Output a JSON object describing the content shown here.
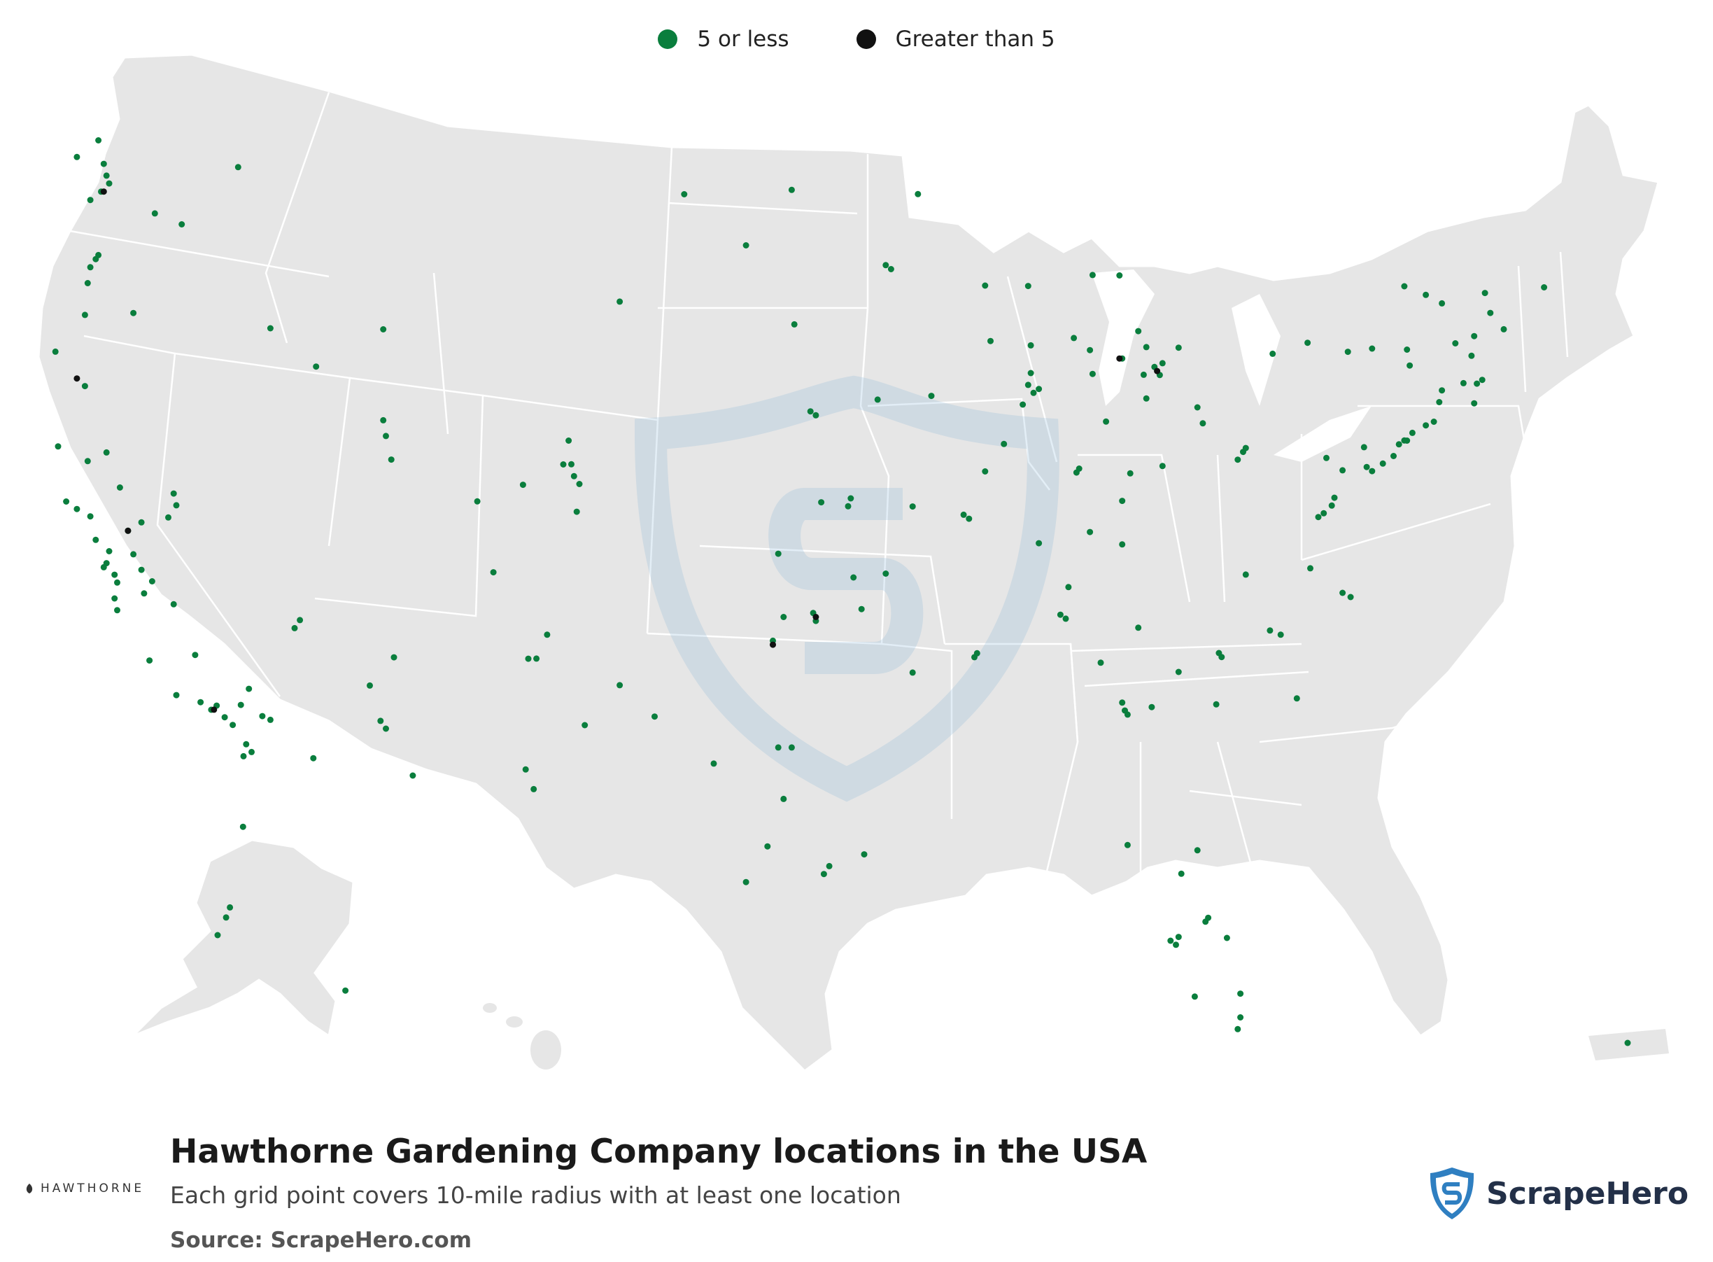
{
  "title": "Hawthorne Gardening Company locations in the USA",
  "subtitle": "Each grid point covers 10-mile radius with at least one location",
  "source": "Source: ScrapeHero.com",
  "legend": [
    {
      "label": "5 or less",
      "color": "#0a7e3d"
    },
    {
      "label": "Greater than 5",
      "color": "#111111"
    }
  ],
  "brand": {
    "hawthorne": "HAWTHORNE",
    "scrapehero": "ScrapeHero",
    "shield_color": "#2f7fc1"
  },
  "colors": {
    "land": "#e6e6e6",
    "border": "#ffffff",
    "water": "#ffffff"
  },
  "chart_data": {
    "type": "scatter",
    "categories": [
      "5 or less",
      "Greater than 5"
    ],
    "series": [
      {
        "name": "5 or less",
        "points": [
          [
            -122.3,
            47.6
          ],
          [
            -122.2,
            47.4
          ],
          [
            -122.5,
            47.2
          ],
          [
            -122.9,
            47.0
          ],
          [
            -122.4,
            47.9
          ],
          [
            -123.4,
            48.1
          ],
          [
            -122.6,
            48.5
          ],
          [
            -117.4,
            47.7
          ],
          [
            -119.5,
            46.3
          ],
          [
            -120.5,
            46.6
          ],
          [
            -122.7,
            45.5
          ],
          [
            -122.9,
            45.3
          ],
          [
            -123.0,
            44.9
          ],
          [
            -123.1,
            44.1
          ],
          [
            -122.6,
            45.6
          ],
          [
            -123.1,
            42.3
          ],
          [
            -124.2,
            43.2
          ],
          [
            -121.3,
            44.1
          ],
          [
            -116.2,
            43.6
          ],
          [
            -112.0,
            43.5
          ],
          [
            -114.5,
            42.6
          ],
          [
            -111.9,
            40.8
          ],
          [
            -111.7,
            40.2
          ],
          [
            -112.0,
            41.2
          ],
          [
            -104.9,
            39.7
          ],
          [
            -105.0,
            40.0
          ],
          [
            -104.8,
            38.8
          ],
          [
            -105.1,
            40.6
          ],
          [
            -105.3,
            40.0
          ],
          [
            -104.7,
            39.5
          ],
          [
            -106.8,
            39.5
          ],
          [
            -107.9,
            37.3
          ],
          [
            -108.5,
            39.1
          ],
          [
            -106.3,
            35.1
          ],
          [
            -106.6,
            35.1
          ],
          [
            -106.7,
            32.3
          ],
          [
            -105.9,
            35.7
          ],
          [
            -106.4,
            31.8
          ],
          [
            -104.5,
            33.4
          ],
          [
            -103.2,
            34.4
          ],
          [
            -111.9,
            33.4
          ],
          [
            -112.1,
            33.6
          ],
          [
            -111.6,
            35.2
          ],
          [
            -110.9,
            32.2
          ],
          [
            -112.5,
            34.5
          ],
          [
            -114.6,
            32.7
          ],
          [
            -115.1,
            36.2
          ],
          [
            -115.3,
            36.0
          ],
          [
            -119.8,
            39.5
          ],
          [
            -119.7,
            39.2
          ],
          [
            -118.2,
            34.1
          ],
          [
            -118.4,
            34.0
          ],
          [
            -117.9,
            33.8
          ],
          [
            -117.2,
            32.8
          ],
          [
            -117.1,
            33.1
          ],
          [
            -116.5,
            33.8
          ],
          [
            -117.3,
            34.1
          ],
          [
            -119.7,
            34.4
          ],
          [
            -120.7,
            35.3
          ],
          [
            -121.9,
            36.6
          ],
          [
            -121.9,
            37.3
          ],
          [
            -122.3,
            37.8
          ],
          [
            -122.0,
            37.5
          ],
          [
            -121.5,
            38.6
          ],
          [
            -121.3,
            38.0
          ],
          [
            -122.7,
            38.4
          ],
          [
            -122.4,
            37.7
          ],
          [
            -123.8,
            39.4
          ],
          [
            -124.1,
            40.8
          ],
          [
            -122.3,
            40.6
          ],
          [
            -121.8,
            39.7
          ],
          [
            -120.6,
            37.3
          ],
          [
            -119.8,
            36.7
          ],
          [
            -119.0,
            35.4
          ],
          [
            -121.0,
            38.8
          ],
          [
            -120.0,
            38.9
          ],
          [
            -122.2,
            38.1
          ],
          [
            -122.9,
            39.0
          ],
          [
            -123.4,
            39.2
          ],
          [
            -121.0,
            37.6
          ],
          [
            -122.0,
            36.9
          ],
          [
            -123.0,
            40.4
          ],
          [
            -120.9,
            37.0
          ],
          [
            -118.8,
            34.2
          ],
          [
            -117.0,
            34.5
          ],
          [
            -116.2,
            33.7
          ],
          [
            -116.9,
            32.9
          ],
          [
            -117.6,
            33.6
          ],
          [
            -96.8,
            32.8
          ],
          [
            -97.3,
            32.8
          ],
          [
            -95.4,
            29.8
          ],
          [
            -95.6,
            29.6
          ],
          [
            -98.5,
            29.4
          ],
          [
            -97.7,
            30.3
          ],
          [
            -97.1,
            31.5
          ],
          [
            -94.1,
            30.1
          ],
          [
            -99.7,
            32.4
          ],
          [
            -101.9,
            33.6
          ],
          [
            -97.5,
            35.5
          ],
          [
            -96.0,
            36.2
          ],
          [
            -95.9,
            36.0
          ],
          [
            -97.1,
            36.1
          ],
          [
            -94.6,
            39.1
          ],
          [
            -94.7,
            38.9
          ],
          [
            -97.3,
            37.7
          ],
          [
            -95.7,
            39.0
          ],
          [
            -96.1,
            41.3
          ],
          [
            -95.9,
            41.2
          ],
          [
            -93.6,
            41.6
          ],
          [
            -91.6,
            41.7
          ],
          [
            -93.3,
            45.0
          ],
          [
            -93.1,
            44.9
          ],
          [
            -92.1,
            46.8
          ],
          [
            -96.8,
            46.9
          ],
          [
            -100.8,
            46.8
          ],
          [
            -98.5,
            45.5
          ],
          [
            -96.7,
            43.5
          ],
          [
            -103.2,
            44.1
          ],
          [
            -90.2,
            38.6
          ],
          [
            -90.4,
            38.7
          ],
          [
            -92.3,
            38.9
          ],
          [
            -93.3,
            37.2
          ],
          [
            -94.5,
            37.1
          ],
          [
            -92.3,
            34.7
          ],
          [
            -94.2,
            36.3
          ],
          [
            -90.0,
            35.1
          ],
          [
            -89.9,
            35.2
          ],
          [
            -86.8,
            36.2
          ],
          [
            -86.6,
            36.1
          ],
          [
            -85.3,
            35.0
          ],
          [
            -83.9,
            35.9
          ],
          [
            -84.4,
            33.8
          ],
          [
            -84.3,
            33.7
          ],
          [
            -84.5,
            34.0
          ],
          [
            -83.4,
            33.9
          ],
          [
            -81.0,
            34.0
          ],
          [
            -82.4,
            34.8
          ],
          [
            -80.8,
            35.2
          ],
          [
            -80.9,
            35.3
          ],
          [
            -79.0,
            35.9
          ],
          [
            -78.6,
            35.8
          ],
          [
            -78.0,
            34.2
          ],
          [
            -81.7,
            30.3
          ],
          [
            -82.5,
            27.9
          ],
          [
            -82.7,
            28.0
          ],
          [
            -82.4,
            28.1
          ],
          [
            -81.4,
            28.5
          ],
          [
            -81.3,
            28.6
          ],
          [
            -80.2,
            25.8
          ],
          [
            -80.1,
            26.1
          ],
          [
            -80.1,
            26.7
          ],
          [
            -81.8,
            26.6
          ],
          [
            -82.3,
            29.7
          ],
          [
            -84.3,
            30.4
          ],
          [
            -80.6,
            28.1
          ],
          [
            -87.6,
            41.9
          ],
          [
            -87.8,
            41.8
          ],
          [
            -88.0,
            42.0
          ],
          [
            -87.9,
            42.3
          ],
          [
            -88.2,
            41.5
          ],
          [
            -89.6,
            39.8
          ],
          [
            -88.9,
            40.5
          ],
          [
            -89.4,
            43.1
          ],
          [
            -87.9,
            43.0
          ],
          [
            -88.0,
            44.5
          ],
          [
            -89.6,
            44.5
          ],
          [
            -86.2,
            39.8
          ],
          [
            -86.1,
            39.9
          ],
          [
            -85.1,
            41.1
          ],
          [
            -87.6,
            38.0
          ],
          [
            -84.5,
            39.1
          ],
          [
            -84.2,
            39.8
          ],
          [
            -83.0,
            40.0
          ],
          [
            -81.7,
            41.5
          ],
          [
            -81.5,
            41.1
          ],
          [
            -83.6,
            41.7
          ],
          [
            -84.5,
            42.7
          ],
          [
            -83.7,
            42.3
          ],
          [
            -83.1,
            42.3
          ],
          [
            -83.3,
            42.5
          ],
          [
            -83.0,
            42.6
          ],
          [
            -85.7,
            42.9
          ],
          [
            -85.6,
            42.3
          ],
          [
            -84.6,
            44.8
          ],
          [
            -85.6,
            44.8
          ],
          [
            -86.3,
            43.2
          ],
          [
            -83.6,
            43.0
          ],
          [
            -83.9,
            43.4
          ],
          [
            -82.4,
            43.0
          ],
          [
            -84.5,
            38.0
          ],
          [
            -85.7,
            38.3
          ],
          [
            -86.5,
            36.9
          ],
          [
            -80.0,
            40.4
          ],
          [
            -79.9,
            40.5
          ],
          [
            -80.2,
            40.2
          ],
          [
            -77.0,
            38.9
          ],
          [
            -77.2,
            38.8
          ],
          [
            -76.6,
            39.3
          ],
          [
            -76.7,
            39.1
          ],
          [
            -77.5,
            37.5
          ],
          [
            -76.3,
            36.9
          ],
          [
            -76.0,
            36.8
          ],
          [
            -79.9,
            37.3
          ],
          [
            -75.2,
            40.0
          ],
          [
            -75.4,
            40.1
          ],
          [
            -76.3,
            40.0
          ],
          [
            -76.9,
            40.3
          ],
          [
            -75.5,
            40.6
          ],
          [
            -74.2,
            40.7
          ],
          [
            -74.0,
            40.8
          ],
          [
            -74.4,
            40.4
          ],
          [
            -74.8,
            40.2
          ],
          [
            -73.9,
            40.8
          ],
          [
            -73.7,
            41.0
          ],
          [
            -73.2,
            41.2
          ],
          [
            -72.7,
            41.8
          ],
          [
            -72.9,
            41.3
          ],
          [
            -71.4,
            41.8
          ],
          [
            -71.1,
            42.4
          ],
          [
            -71.3,
            42.3
          ],
          [
            -71.8,
            42.3
          ],
          [
            -72.6,
            42.1
          ],
          [
            -73.8,
            42.7
          ],
          [
            -73.9,
            43.1
          ],
          [
            -76.1,
            43.0
          ],
          [
            -77.6,
            43.2
          ],
          [
            -78.9,
            42.9
          ],
          [
            -75.2,
            43.1
          ],
          [
            -74.0,
            44.7
          ],
          [
            -72.6,
            44.3
          ],
          [
            -73.2,
            44.5
          ],
          [
            -71.5,
            43.0
          ],
          [
            -71.4,
            43.5
          ],
          [
            -70.3,
            43.7
          ],
          [
            -70.8,
            44.1
          ],
          [
            -68.8,
            44.8
          ],
          [
            -71.0,
            44.6
          ],
          [
            -72.1,
            43.3
          ],
          [
            -149.9,
            61.2
          ],
          [
            -149.4,
            61.6
          ],
          [
            -147.7,
            64.8
          ],
          [
            -151.0,
            60.5
          ],
          [
            -134.4,
            58.3
          ],
          [
            -66.1,
            18.4
          ]
        ]
      },
      {
        "name": "Greater than 5",
        "points": [
          [
            -122.4,
            47.2
          ],
          [
            -121.5,
            38.6
          ],
          [
            -118.3,
            34.0
          ],
          [
            -97.5,
            35.4
          ],
          [
            -95.9,
            36.1
          ],
          [
            -84.6,
            42.7
          ],
          [
            -83.2,
            42.4
          ],
          [
            -123.4,
            42.5
          ]
        ]
      }
    ]
  }
}
